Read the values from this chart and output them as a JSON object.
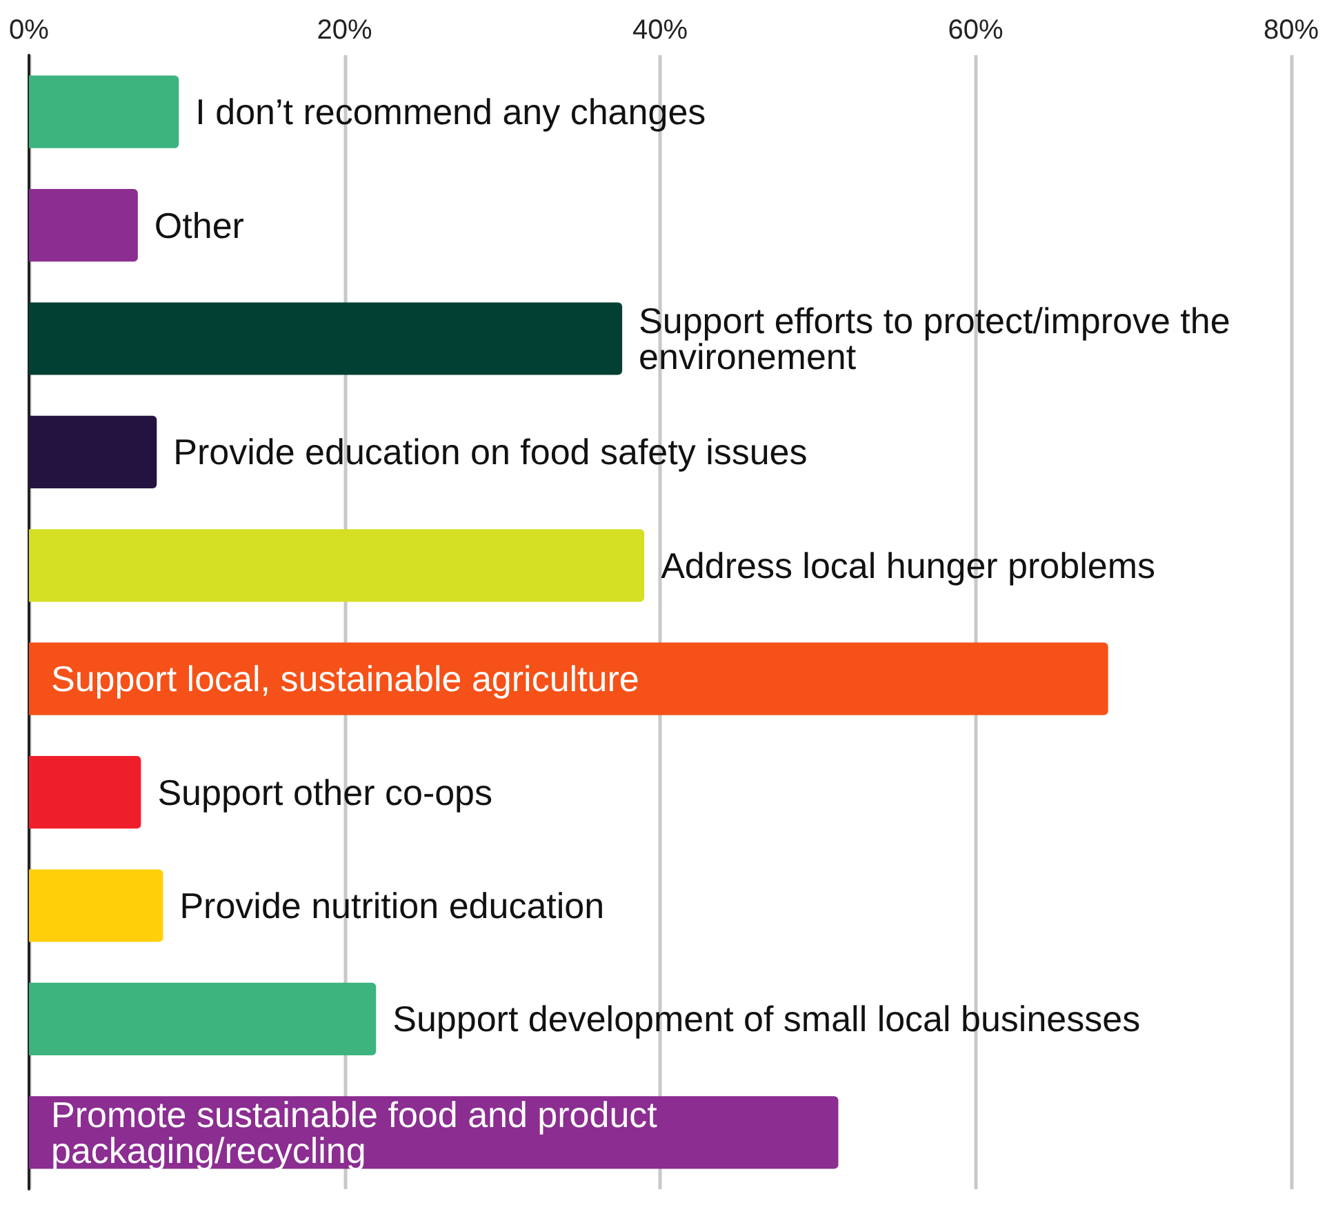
{
  "chart_data": {
    "type": "bar",
    "orientation": "horizontal",
    "categories": [
      "I don’t recommend any changes",
      "Other",
      "Support efforts to protect/improve the environement",
      "Provide education on food safety issues",
      "Address local hunger problems",
      "Support local, sustainable agriculture",
      "Support other co-ops",
      "Provide nutrition education",
      "Support development of small local businesses",
      "Promote sustainable food and product packaging/recycling"
    ],
    "values": [
      9.5,
      6.9,
      37.6,
      8.1,
      39.0,
      68.4,
      7.1,
      8.5,
      22.0,
      51.3
    ],
    "colors": [
      "#3db37e",
      "#8b2d91",
      "#024034",
      "#241340",
      "#d5df23",
      "#f55118",
      "#ee1f2a",
      "#ffcf0a",
      "#3db37e",
      "#8b2d91"
    ],
    "xlim": [
      0,
      80
    ],
    "xticks": [
      {
        "value": 0,
        "label": "0%"
      },
      {
        "value": 20,
        "label": "20%"
      },
      {
        "value": 40,
        "label": "40%"
      },
      {
        "value": 60,
        "label": "60%"
      },
      {
        "value": 80,
        "label": "80%"
      }
    ],
    "grid": "x"
  }
}
